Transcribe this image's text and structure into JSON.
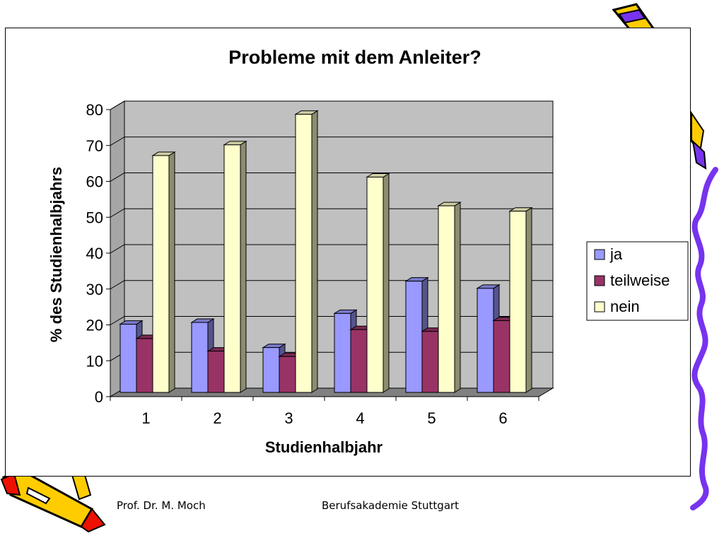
{
  "chart_data": {
    "type": "bar",
    "title": "Probleme mit dem Anleiter?",
    "xlabel": "Studienhalbjahr",
    "ylabel": "% des Studienhalbjahrs",
    "categories": [
      "1",
      "2",
      "3",
      "4",
      "5",
      "6"
    ],
    "ylim": [
      0,
      80
    ],
    "yticks": [
      "0",
      "10",
      "20",
      "30",
      "40",
      "50",
      "60",
      "70",
      "80"
    ],
    "grid": true,
    "legend_position": "right",
    "series": [
      {
        "name": "ja",
        "color": "#9999ff",
        "values": [
          19,
          19.5,
          12.5,
          22,
          31,
          29
        ]
      },
      {
        "name": "teilweise",
        "color": "#993366",
        "values": [
          15,
          11.5,
          10,
          17.5,
          17,
          20
        ]
      },
      {
        "name": "nein",
        "color": "#ffffcc",
        "values": [
          66,
          69,
          77.5,
          60,
          52,
          50.5
        ]
      }
    ]
  },
  "footer": {
    "author": "Prof. Dr. M. Moch",
    "institution": "Berufsakademie Stuttgart"
  },
  "colors": {
    "plot_back": "#c0c0c0",
    "plot_floor": "#808080",
    "decoration_purple": "#7733ee",
    "decoration_yellow": "#ffcc00",
    "decoration_red": "#ee1100"
  }
}
